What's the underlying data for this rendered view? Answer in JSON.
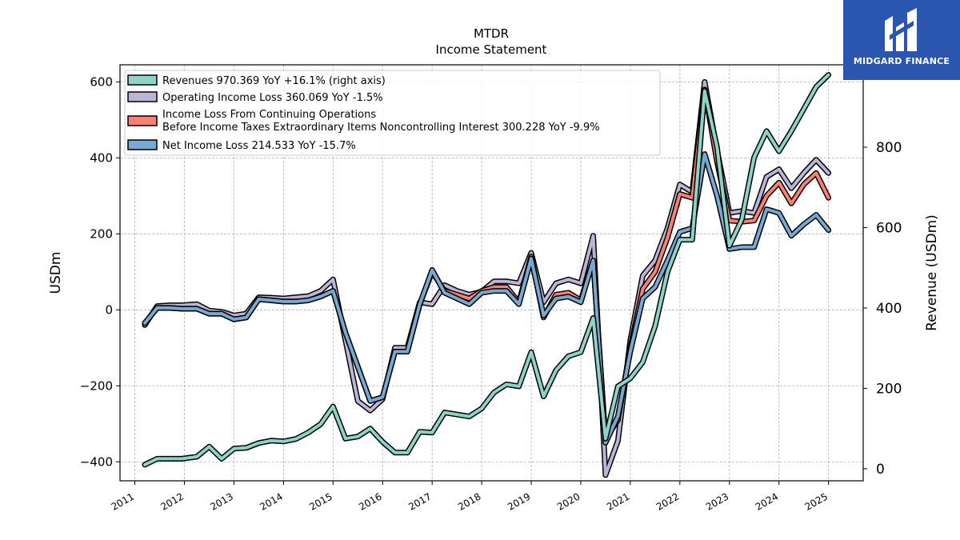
{
  "chart_data": {
    "type": "line",
    "title": "MTDR",
    "subtitle": "Income Statement",
    "ylabel": "USDm",
    "y2label": "Revenue (USDm)",
    "ylim": [
      -450,
      645
    ],
    "y2lim": [
      -30,
      1005
    ],
    "yticks": [
      -400,
      -200,
      0,
      200,
      400,
      600
    ],
    "y2ticks": [
      0,
      200,
      400,
      600,
      800
    ],
    "xlim": [
      2010.7,
      2025.7
    ],
    "xticks": [
      "2011",
      "2012",
      "2013",
      "2014",
      "2015",
      "2016",
      "2017",
      "2018",
      "2019",
      "2020",
      "2021",
      "2022",
      "2023",
      "2024",
      "2025"
    ],
    "grid": true,
    "legend_position": "top-left",
    "series": [
      {
        "name": "Operating Income Loss",
        "legend": "Operating Income Loss  360.069 YoY -1.5%",
        "color": "#bcb5d7",
        "axis": "left",
        "x": [
          2011.2,
          2011.45,
          2011.7,
          2011.95,
          2012.25,
          2012.5,
          2012.75,
          2013.0,
          2013.25,
          2013.5,
          2013.75,
          2014.0,
          2014.25,
          2014.5,
          2014.75,
          2015.0,
          2015.25,
          2015.5,
          2015.75,
          2016.0,
          2016.25,
          2016.5,
          2016.75,
          2017.0,
          2017.25,
          2017.5,
          2017.75,
          2018.0,
          2018.25,
          2018.5,
          2018.75,
          2019.0,
          2019.25,
          2019.5,
          2019.75,
          2020.0,
          2020.25,
          2020.5,
          2020.75,
          2021.0,
          2021.25,
          2021.5,
          2021.75,
          2022.0,
          2022.25,
          2022.5,
          2022.75,
          2023.0,
          2023.25,
          2023.5,
          2023.75,
          2024.0,
          2024.25,
          2024.5,
          2024.75,
          2025.0
        ],
        "y": [
          -40,
          10,
          12,
          12,
          15,
          -2,
          -5,
          -15,
          -10,
          33,
          32,
          30,
          33,
          36,
          50,
          80,
          -80,
          -240,
          -265,
          -235,
          -100,
          -100,
          20,
          15,
          65,
          50,
          40,
          48,
          75,
          75,
          70,
          150,
          20,
          70,
          80,
          70,
          195,
          -435,
          -345,
          -80,
          90,
          130,
          215,
          330,
          310,
          600,
          420,
          255,
          260,
          255,
          350,
          370,
          320,
          360,
          395,
          360
        ]
      },
      {
        "name": "Income Loss From Continuing Operations Before Income Taxes Extraordinary Items Noncontrolling Interest",
        "legend_line1": "Income Loss From Continuing Operations",
        "legend_line2": "Before Income Taxes Extraordinary Items Noncontrolling Interest  300.228 YoY -9.9%",
        "color": "#fa8072",
        "axis": "left",
        "x": [
          2011.2,
          2011.45,
          2011.7,
          2011.95,
          2012.25,
          2012.5,
          2012.75,
          2013.0,
          2013.25,
          2013.5,
          2013.75,
          2014.0,
          2014.25,
          2014.5,
          2014.75,
          2015.0,
          2015.25,
          2015.5,
          2015.75,
          2016.0,
          2016.25,
          2016.5,
          2016.75,
          2017.0,
          2017.25,
          2017.5,
          2017.75,
          2018.0,
          2018.25,
          2018.5,
          2018.75,
          2019.0,
          2019.25,
          2019.5,
          2019.75,
          2020.0,
          2020.25,
          2020.5,
          2020.75,
          2021.0,
          2021.25,
          2021.5,
          2021.75,
          2022.0,
          2022.25,
          2022.5,
          2022.75,
          2023.0,
          2023.25,
          2023.5,
          2023.75,
          2024.0,
          2024.25,
          2024.5,
          2024.75,
          2025.0
        ],
        "y": [
          -35,
          5,
          5,
          3,
          3,
          -10,
          -10,
          -25,
          -20,
          28,
          25,
          22,
          22,
          25,
          35,
          50,
          -60,
          -150,
          -240,
          -230,
          -110,
          -110,
          15,
          100,
          50,
          40,
          30,
          50,
          60,
          60,
          20,
          140,
          -20,
          40,
          45,
          25,
          130,
          -340,
          -290,
          -100,
          55,
          100,
          190,
          305,
          295,
          580,
          390,
          235,
          232,
          235,
          300,
          335,
          280,
          330,
          360,
          295
        ]
      },
      {
        "name": "Net Income Loss",
        "legend": "Net Income Loss  214.533 YoY -15.7%",
        "color": "#77a9d3",
        "axis": "left",
        "x": [
          2011.2,
          2011.45,
          2011.7,
          2011.95,
          2012.25,
          2012.5,
          2012.75,
          2013.0,
          2013.25,
          2013.5,
          2013.75,
          2014.0,
          2014.25,
          2014.5,
          2014.75,
          2015.0,
          2015.25,
          2015.5,
          2015.75,
          2016.0,
          2016.25,
          2016.5,
          2016.75,
          2017.0,
          2017.25,
          2017.5,
          2017.75,
          2018.0,
          2018.25,
          2018.5,
          2018.75,
          2019.0,
          2019.25,
          2019.5,
          2019.75,
          2020.0,
          2020.25,
          2020.5,
          2020.75,
          2021.0,
          2021.25,
          2021.5,
          2021.75,
          2022.0,
          2022.25,
          2022.5,
          2022.75,
          2023.0,
          2023.25,
          2023.5,
          2023.75,
          2024.0,
          2024.25,
          2024.5,
          2024.75,
          2025.0
        ],
        "y": [
          -35,
          5,
          5,
          3,
          3,
          -10,
          -10,
          -25,
          -20,
          28,
          25,
          22,
          22,
          25,
          35,
          50,
          -60,
          -150,
          -240,
          -230,
          -110,
          -110,
          15,
          105,
          45,
          30,
          15,
          45,
          50,
          50,
          15,
          135,
          -15,
          30,
          35,
          20,
          130,
          -350,
          -280,
          -110,
          30,
          60,
          130,
          205,
          215,
          410,
          300,
          160,
          165,
          165,
          265,
          255,
          195,
          225,
          250,
          210
        ]
      },
      {
        "name": "Revenues",
        "legend": "Revenues  970.369 YoY +16.1% (right axis)",
        "color": "#8dd3c7",
        "axis": "right",
        "x": [
          2011.2,
          2011.45,
          2011.7,
          2011.95,
          2012.25,
          2012.5,
          2012.75,
          2013.0,
          2013.25,
          2013.5,
          2013.75,
          2014.0,
          2014.25,
          2014.5,
          2014.75,
          2015.0,
          2015.25,
          2015.5,
          2015.75,
          2016.0,
          2016.25,
          2016.5,
          2016.75,
          2017.0,
          2017.25,
          2017.5,
          2017.75,
          2018.0,
          2018.25,
          2018.5,
          2018.75,
          2019.0,
          2019.25,
          2019.5,
          2019.75,
          2020.0,
          2020.25,
          2020.5,
          2020.75,
          2021.0,
          2021.25,
          2021.5,
          2021.75,
          2022.0,
          2022.25,
          2022.5,
          2022.75,
          2023.0,
          2023.25,
          2023.5,
          2023.75,
          2024.0,
          2024.25,
          2024.5,
          2024.75,
          2025.0
        ],
        "y": [
          10,
          25,
          25,
          25,
          30,
          55,
          25,
          50,
          52,
          64,
          70,
          68,
          74,
          90,
          111,
          155,
          75,
          80,
          100,
          67,
          40,
          40,
          92,
          90,
          140,
          135,
          130,
          150,
          190,
          210,
          205,
          290,
          180,
          245,
          280,
          290,
          375,
          75,
          205,
          225,
          265,
          355,
          490,
          570,
          570,
          940,
          800,
          555,
          620,
          775,
          840,
          790,
          840,
          895,
          950,
          980
        ]
      }
    ]
  },
  "logo": {
    "text": "MIDGARD FINANCE"
  }
}
